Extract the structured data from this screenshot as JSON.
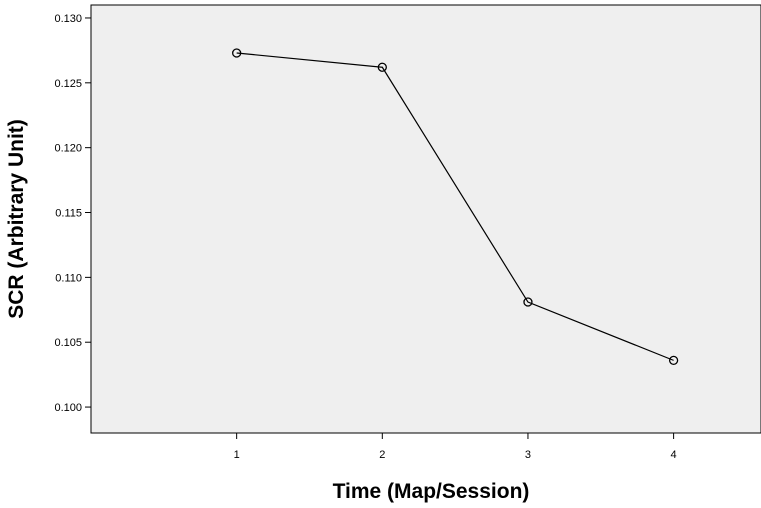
{
  "chart_data": {
    "type": "line",
    "title": "",
    "xlabel": "Time (Map/Session)",
    "ylabel": "SCR (Arbitrary Unit)",
    "x_ticks": [
      "1",
      "2",
      "3",
      "4"
    ],
    "y_ticks": [
      "0.100",
      "0.105",
      "0.110",
      "0.115",
      "0.120",
      "0.125",
      "0.130"
    ],
    "ylim": [
      0.098,
      0.131
    ],
    "xlim": [
      0,
      4.6
    ],
    "grid": false,
    "legend": "none",
    "series": [
      {
        "x": [
          1,
          2,
          3,
          4
        ],
        "values": [
          0.1273,
          0.1262,
          0.1081,
          0.1036
        ],
        "marker": "open-circle"
      }
    ],
    "colors": {
      "plot_background": "#efefef",
      "line": "#000000",
      "axis": "#000000"
    }
  }
}
